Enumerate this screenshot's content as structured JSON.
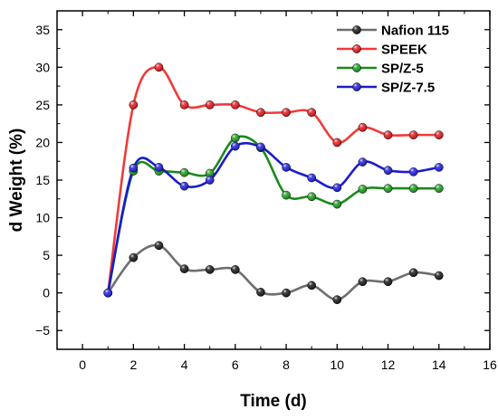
{
  "chart_data": {
    "type": "line",
    "title": "",
    "xlabel": "Time (d)",
    "ylabel": "d Weight (%)",
    "xlim": [
      -1,
      16
    ],
    "ylim": [
      -7.5,
      37.5
    ],
    "xticks": [
      0,
      2,
      4,
      6,
      8,
      10,
      12,
      14,
      16
    ],
    "yticks": [
      -5,
      0,
      5,
      10,
      15,
      20,
      25,
      30,
      35
    ],
    "legend_position": "top-right",
    "grid": false,
    "x": [
      1,
      2,
      3,
      4,
      5,
      6,
      7,
      8,
      9,
      10,
      11,
      12,
      13,
      14
    ],
    "series": [
      {
        "name": "Nafion 115",
        "color": "#6e6e6e",
        "marker_color": "#1a1a1a",
        "values": [
          0,
          4.7,
          6.3,
          3.2,
          3.1,
          3.1,
          0.1,
          0.0,
          1.0,
          -0.9,
          1.5,
          1.5,
          2.7,
          2.3
        ]
      },
      {
        "name": "SPEEK",
        "color": "#f03a3a",
        "marker_color": "#e8191f",
        "values": [
          0,
          25.0,
          30.0,
          25.0,
          25.0,
          25.0,
          24.0,
          24.0,
          24.0,
          20.0,
          22.0,
          21.0,
          21.0,
          21.0
        ]
      },
      {
        "name": "SP/Z-5",
        "color": "#1a8a1a",
        "marker_color": "#1fa01f",
        "values": [
          0,
          16.2,
          16.2,
          16.0,
          15.9,
          20.6,
          19.3,
          13.0,
          12.8,
          11.8,
          13.8,
          13.9,
          13.9,
          13.9
        ]
      },
      {
        "name": "SP/Z-7.5",
        "color": "#1c1cc8",
        "marker_color": "#2020e0",
        "values": [
          0,
          16.6,
          16.7,
          14.2,
          15.0,
          19.5,
          19.4,
          16.7,
          15.3,
          14.0,
          17.4,
          16.3,
          16.1,
          16.7
        ]
      }
    ]
  }
}
